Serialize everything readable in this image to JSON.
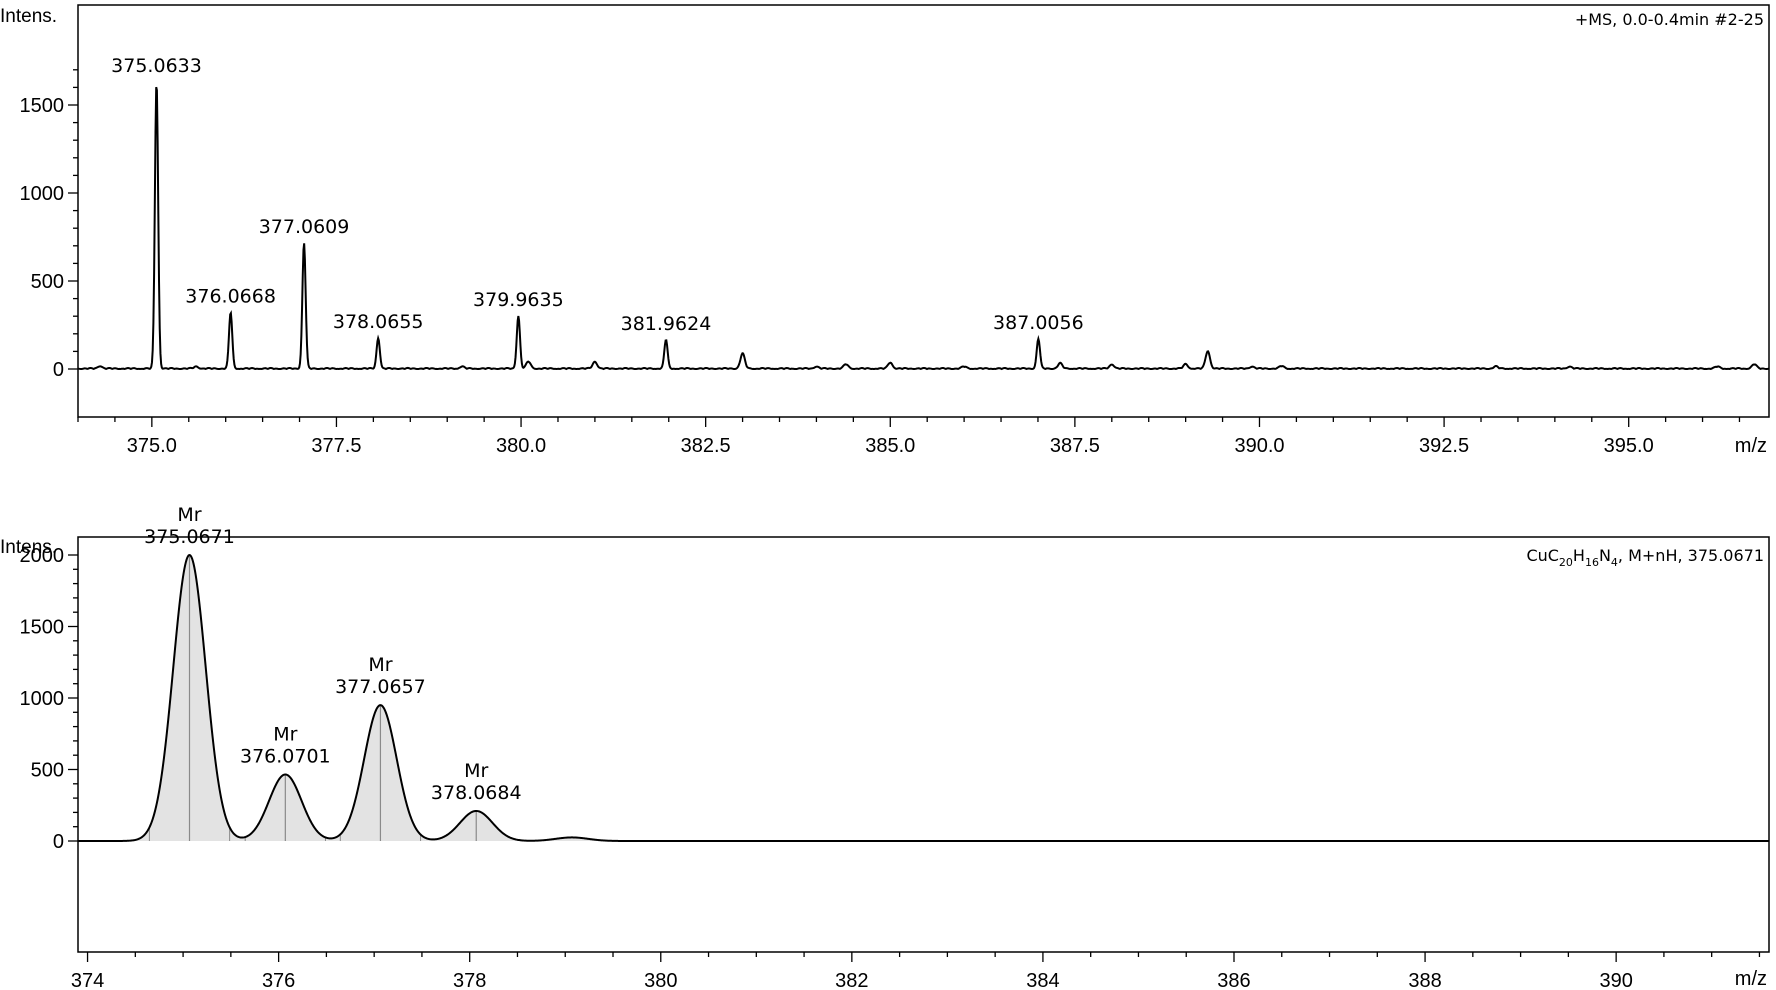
{
  "chart_data": [
    {
      "type": "line",
      "ylabel": "Intens.",
      "xlabel": "m/z",
      "info": "+MS, 0.0-0.4min #2-25",
      "xlim": [
        374.0,
        396.9
      ],
      "ylim": [
        0,
        1700
      ],
      "x_ticks": [
        "375.0",
        "377.5",
        "380.0",
        "382.5",
        "385.0",
        "387.5",
        "390.0",
        "392.5",
        "395.0"
      ],
      "y_ticks": [
        "0",
        "500",
        "1000",
        "1500"
      ],
      "annotations": [
        {
          "x": 375.0633,
          "label": "375.0633"
        },
        {
          "x": 376.0668,
          "label": "376.0668"
        },
        {
          "x": 377.0609,
          "label": "377.0609"
        },
        {
          "x": 378.0655,
          "label": "378.0655"
        },
        {
          "x": 379.9635,
          "label": "379.9635"
        },
        {
          "x": 381.9624,
          "label": "381.9624"
        },
        {
          "x": 387.0056,
          "label": "387.0056"
        }
      ],
      "peaks": [
        {
          "x": 375.0633,
          "y": 1630
        },
        {
          "x": 376.0668,
          "y": 320
        },
        {
          "x": 377.0609,
          "y": 715
        },
        {
          "x": 378.0655,
          "y": 175
        },
        {
          "x": 379.9635,
          "y": 300
        },
        {
          "x": 381.9624,
          "y": 165
        },
        {
          "x": 387.0056,
          "y": 170
        },
        {
          "x": 383.0,
          "y": 85
        },
        {
          "x": 389.3,
          "y": 100
        },
        {
          "x": 387.3,
          "y": 30
        },
        {
          "x": 380.1,
          "y": 40
        },
        {
          "x": 381.0,
          "y": 40
        },
        {
          "x": 385.0,
          "y": 35
        },
        {
          "x": 388.0,
          "y": 25
        },
        {
          "x": 389.0,
          "y": 25
        },
        {
          "x": 384.4,
          "y": 25
        },
        {
          "x": 396.7,
          "y": 25
        },
        {
          "x": 374.3,
          "y": 15
        },
        {
          "x": 375.6,
          "y": 12
        },
        {
          "x": 379.2,
          "y": 12
        },
        {
          "x": 384.0,
          "y": 12
        },
        {
          "x": 386.0,
          "y": 12
        },
        {
          "x": 389.9,
          "y": 12
        },
        {
          "x": 390.3,
          "y": 15
        },
        {
          "x": 393.2,
          "y": 12
        },
        {
          "x": 394.2,
          "y": 12
        },
        {
          "x": 396.2,
          "y": 12
        }
      ]
    },
    {
      "type": "area",
      "ylabel": "Intens.",
      "xlabel": "m/z",
      "info_parts": [
        "CuC",
        "20",
        "H",
        "16",
        "N",
        "4",
        ", M+nH, 375.0671"
      ],
      "xlim": [
        373.9,
        391.6
      ],
      "ylim": [
        0,
        2200
      ],
      "x_ticks": [
        "374",
        "376",
        "378",
        "380",
        "382",
        "384",
        "386",
        "388",
        "390"
      ],
      "y_ticks": [
        "0",
        "500",
        "1000",
        "1500",
        "2000"
      ],
      "annotations": [
        {
          "x": 375.0671,
          "label_top": "Mr",
          "label": "375.0671"
        },
        {
          "x": 376.0701,
          "label_top": "Mr",
          "label": "376.0701"
        },
        {
          "x": 377.0657,
          "label_top": "Mr",
          "label": "377.0657"
        },
        {
          "x": 378.0684,
          "label_top": "Mr",
          "label": "378.0684"
        }
      ],
      "peaks": [
        {
          "x": 375.0671,
          "y": 2000
        },
        {
          "x": 376.0701,
          "y": 465
        },
        {
          "x": 377.0657,
          "y": 950
        },
        {
          "x": 378.0684,
          "y": 210
        },
        {
          "x": 379.07,
          "y": 25
        }
      ]
    }
  ]
}
